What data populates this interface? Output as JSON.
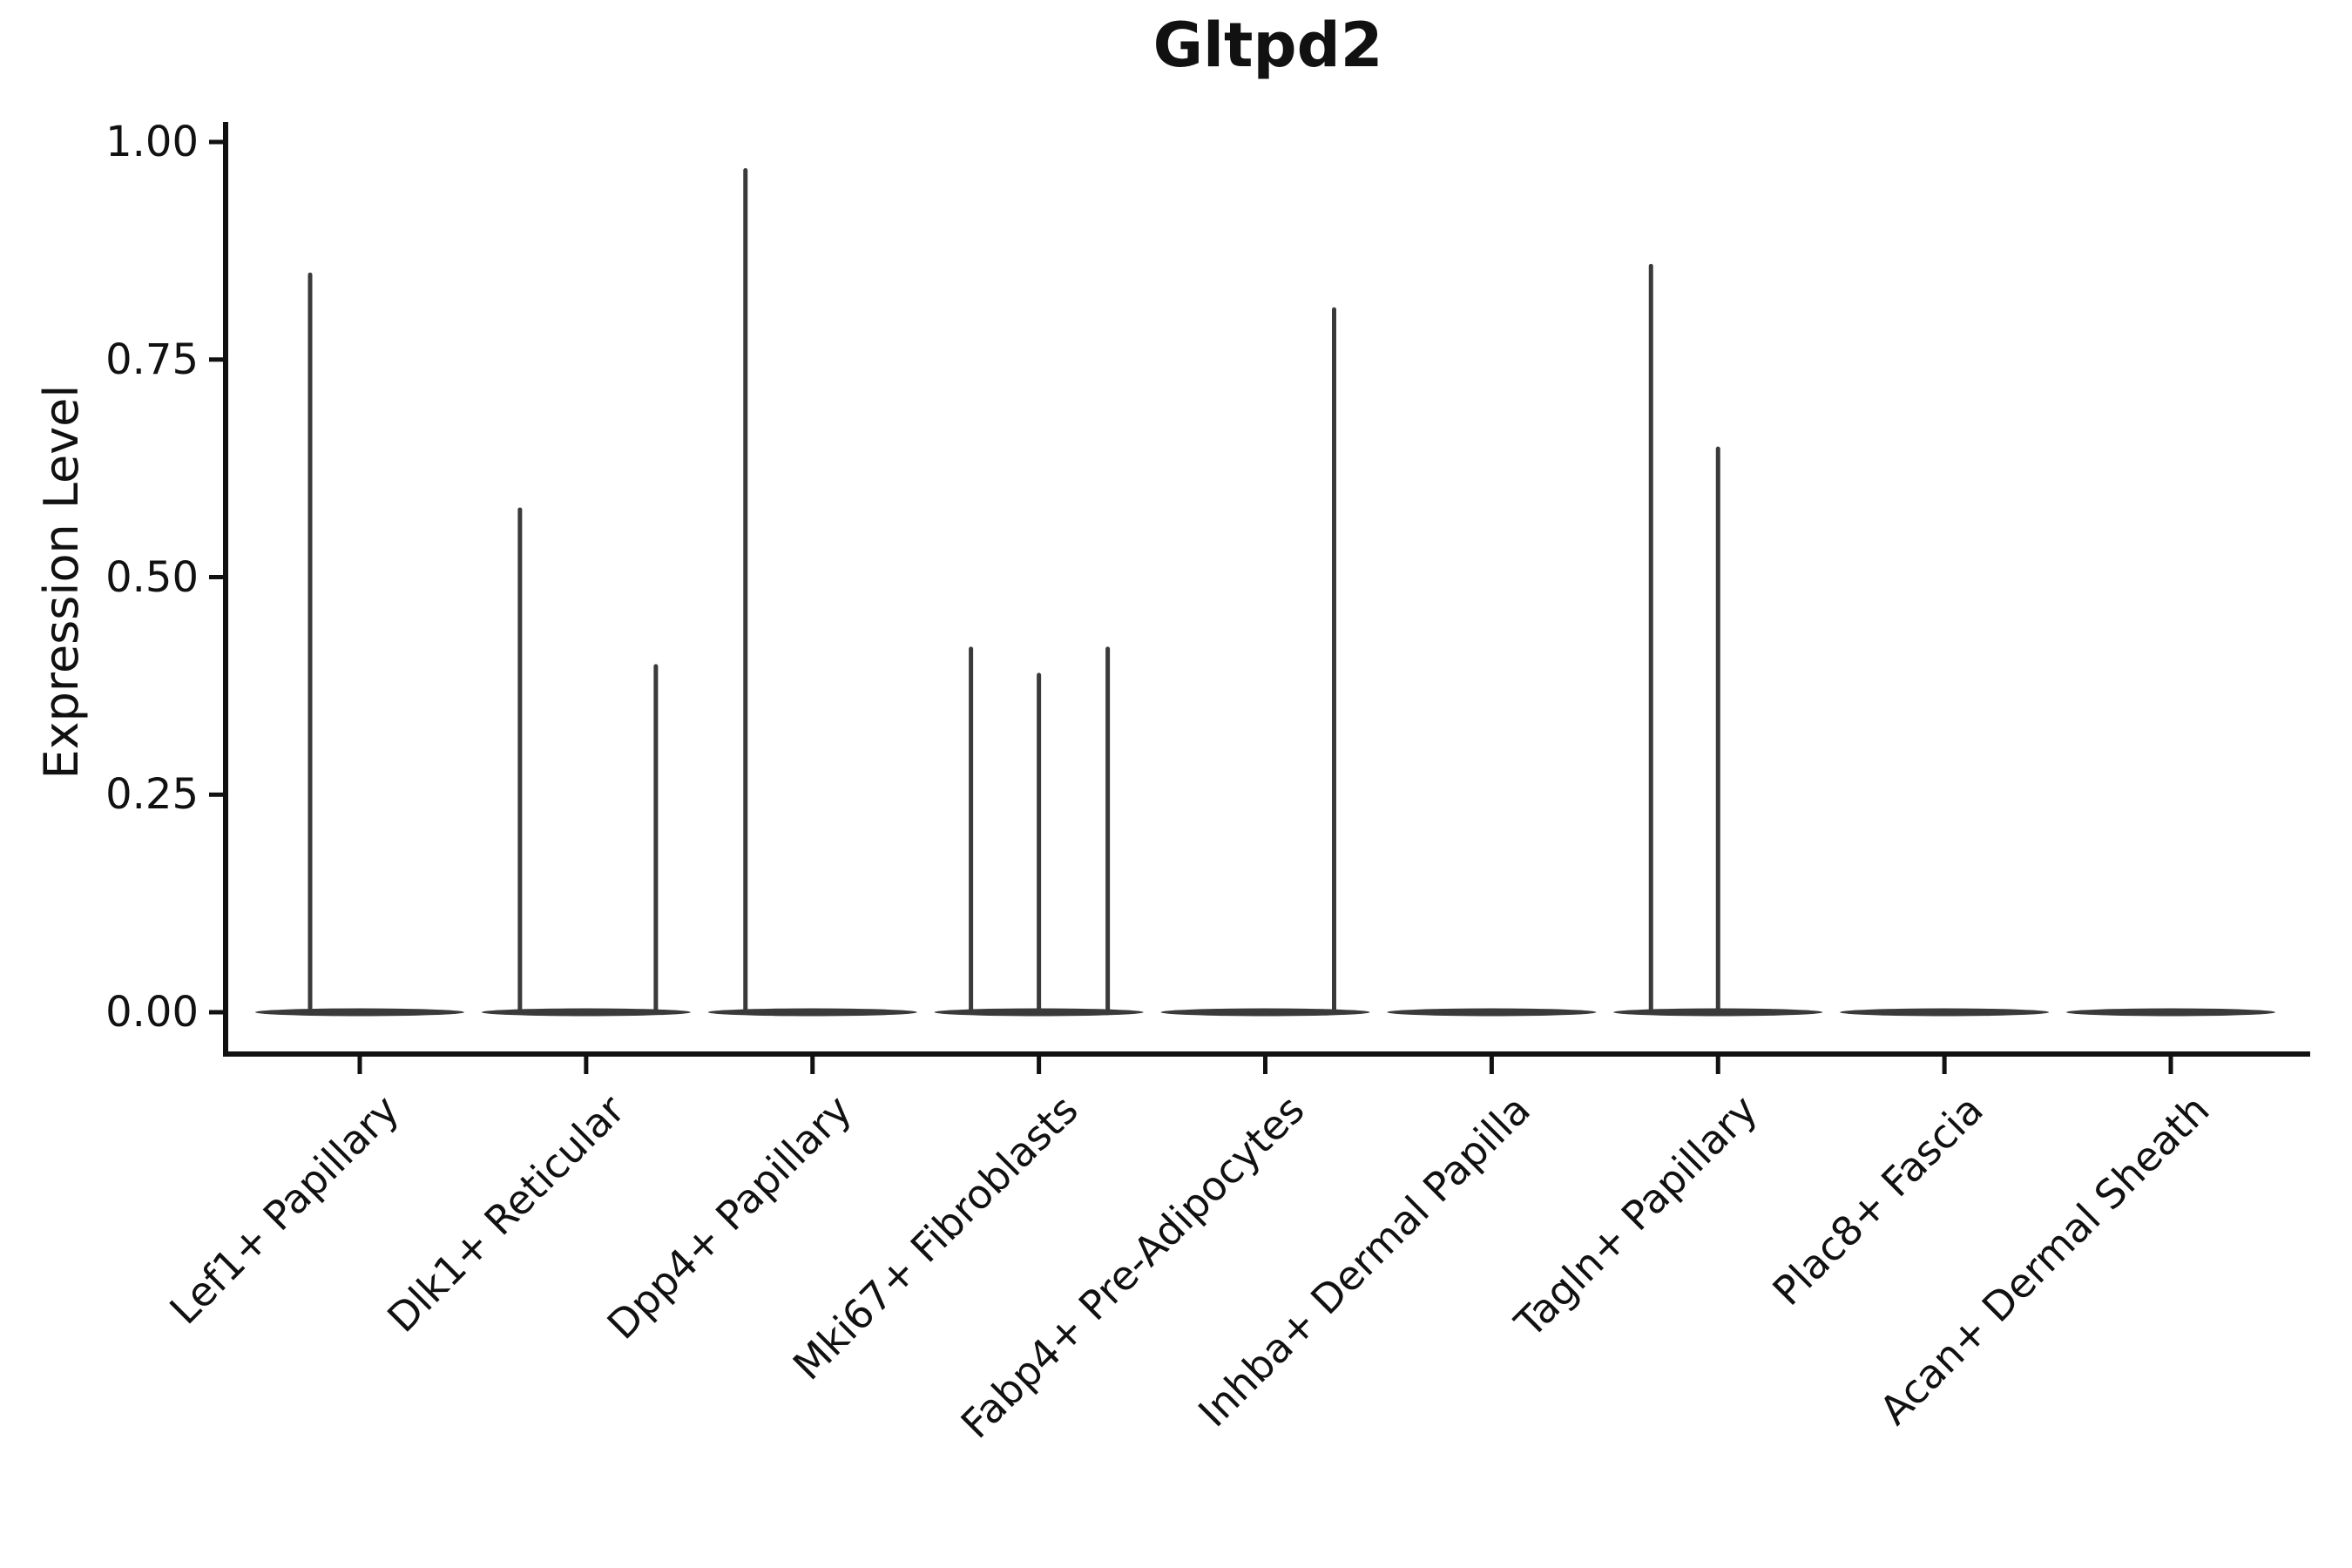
{
  "title": "Gltpd2",
  "colors": {
    "background": "#ffffff",
    "axis": "#111111",
    "text": "#111111",
    "violin": "#3a3a3a"
  },
  "chart_data": {
    "type": "violin",
    "title": "Gltpd2",
    "xlabel": "",
    "ylabel": "Expression Level",
    "ylim": [
      0,
      1
    ],
    "grid": false,
    "legend": false,
    "ytick_values": [
      1.0,
      0.75,
      0.5,
      0.25,
      0.0
    ],
    "ytick_labels": [
      "1.00",
      "0.75",
      "0.50",
      "0.25",
      "0.00"
    ],
    "categories": [
      "Lef1+ Papillary",
      "Dlk1+ Reticular",
      "Dpp4+ Papillary",
      "Mki67+ Fibroblasts",
      "Fabp4+ Pre-Adipocytes",
      "Inhba+ Dermal Papilla",
      "Tagln+ Papillary",
      "Plac8+ Fascia",
      "Acan+ Dermal Sheath"
    ],
    "violins": [
      {
        "category": "Lef1+ Papillary",
        "baseline_value": 0,
        "spikes": [
          {
            "offset": -57,
            "value": 0.85
          }
        ]
      },
      {
        "category": "Dlk1+ Reticular",
        "baseline_value": 0,
        "spikes": [
          {
            "offset": -76,
            "value": 0.58
          },
          {
            "offset": 80,
            "value": 0.4
          }
        ]
      },
      {
        "category": "Dpp4+ Papillary",
        "baseline_value": 0,
        "spikes": [
          {
            "offset": -77,
            "value": 0.97
          }
        ]
      },
      {
        "category": "Mki67+ Fibroblasts",
        "baseline_value": 0,
        "spikes": [
          {
            "offset": -78,
            "value": 0.42
          },
          {
            "offset": 0,
            "value": 0.39
          },
          {
            "offset": 79,
            "value": 0.42
          }
        ]
      },
      {
        "category": "Fabp4+ Pre-Adipocytes",
        "baseline_value": 0,
        "spikes": [
          {
            "offset": 79,
            "value": 0.81
          }
        ]
      },
      {
        "category": "Inhba+ Dermal Papilla",
        "baseline_value": 0,
        "spikes": []
      },
      {
        "category": "Tagln+ Papillary",
        "baseline_value": 0,
        "spikes": [
          {
            "offset": -77,
            "value": 0.86
          },
          {
            "offset": 0,
            "value": 0.65
          }
        ]
      },
      {
        "category": "Plac8+ Fascia",
        "baseline_value": 0,
        "spikes": []
      },
      {
        "category": "Acan+ Dermal Sheath",
        "baseline_value": 0,
        "spikes": []
      }
    ]
  }
}
